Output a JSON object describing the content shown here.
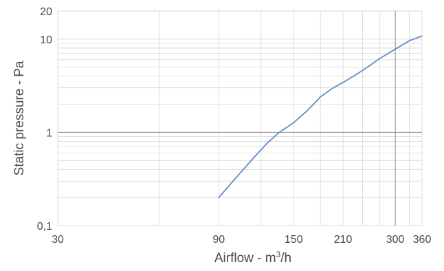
{
  "chart_data": {
    "type": "line",
    "title": "",
    "xlabel": "Airflow - m",
    "xlabel_superscript": "3",
    "xlabel_suffix": "/h",
    "ylabel": "Static pressure  - Pa",
    "x_scale": "log",
    "y_scale": "log",
    "xlim": [
      30,
      360
    ],
    "ylim": [
      0.1,
      20
    ],
    "grid": true,
    "legend": "none",
    "x_ticks": [
      {
        "value": 30,
        "label": "30"
      },
      {
        "value": 90,
        "label": "90"
      },
      {
        "value": 150,
        "label": "150"
      },
      {
        "value": 210,
        "label": "210"
      },
      {
        "value": 300,
        "label": "300"
      },
      {
        "value": 360,
        "label": "360"
      }
    ],
    "y_ticks": [
      {
        "value": 0.1,
        "label": "0,1"
      },
      {
        "value": 1,
        "label": "1"
      },
      {
        "value": 10,
        "label": "10"
      },
      {
        "value": 20,
        "label": "20"
      }
    ],
    "series": [
      {
        "color": "#5b8fc7",
        "points": [
          {
            "x": 90,
            "y": 0.2
          },
          {
            "x": 100,
            "y": 0.31
          },
          {
            "x": 115,
            "y": 0.55
          },
          {
            "x": 125,
            "y": 0.76
          },
          {
            "x": 135,
            "y": 0.98
          },
          {
            "x": 150,
            "y": 1.27
          },
          {
            "x": 165,
            "y": 1.72
          },
          {
            "x": 180,
            "y": 2.4
          },
          {
            "x": 195,
            "y": 2.95
          },
          {
            "x": 215,
            "y": 3.6
          },
          {
            "x": 240,
            "y": 4.6
          },
          {
            "x": 270,
            "y": 6.2
          },
          {
            "x": 300,
            "y": 7.8
          },
          {
            "x": 330,
            "y": 9.6
          },
          {
            "x": 360,
            "y": 10.8
          }
        ]
      }
    ]
  }
}
